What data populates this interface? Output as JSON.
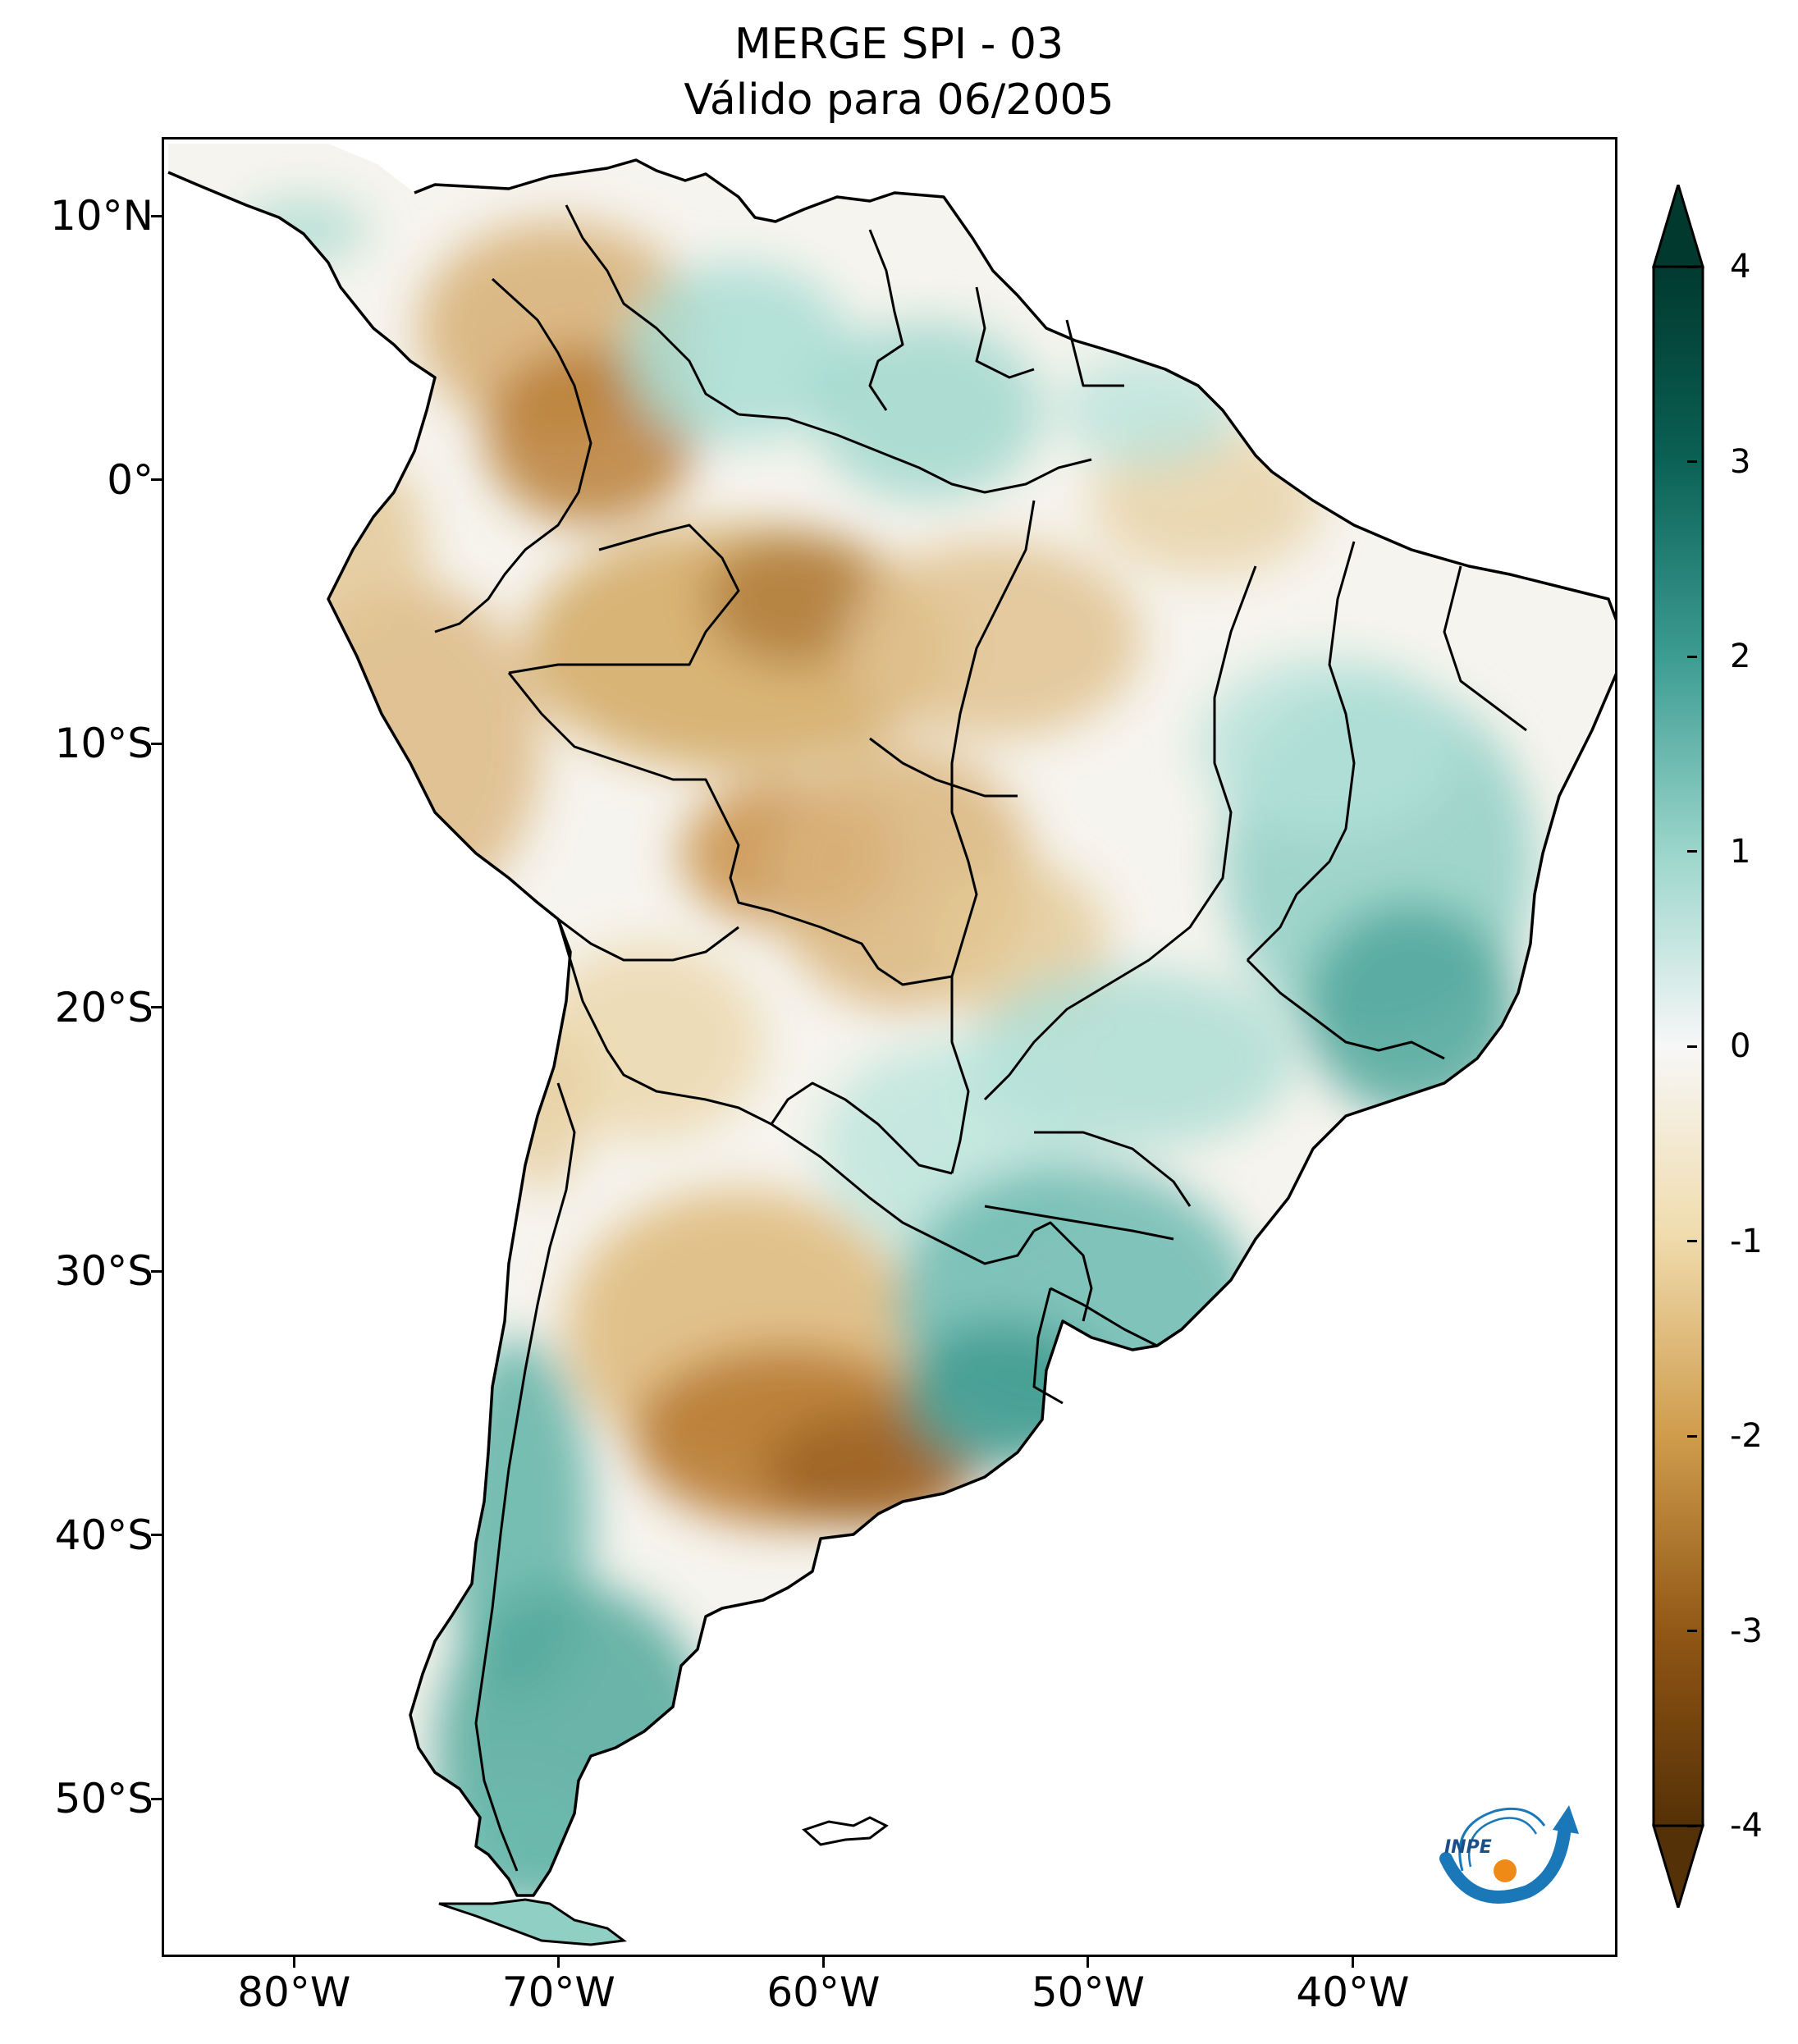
{
  "title": {
    "line1": "MERGE   SPI - 03",
    "line2": "Válido para 06/2005"
  },
  "axes": {
    "lat_labels": [
      "10°N",
      "0°",
      "10°S",
      "20°S",
      "30°S",
      "40°S",
      "50°S"
    ],
    "lon_labels": [
      "80°W",
      "70°W",
      "60°W",
      "50°W",
      "40°W"
    ],
    "lat_values": [
      10,
      0,
      -10,
      -20,
      -30,
      -40,
      -50
    ],
    "lon_values": [
      -80,
      -70,
      -60,
      -50,
      -40
    ],
    "lat_range": [
      -56,
      13
    ],
    "lon_range": [
      -85,
      -30
    ]
  },
  "colorbar": {
    "ticks": [
      "4",
      "3",
      "2",
      "1",
      "0",
      "-1",
      "-2",
      "-3",
      "-4"
    ],
    "tick_values": [
      4,
      3,
      2,
      1,
      0,
      -1,
      -2,
      -3,
      -4
    ],
    "range": [
      -4,
      4
    ],
    "colormap": "BrBG",
    "colors": {
      "max": "#01392f",
      "wet_strong": "#0e7367",
      "wet": "#5cb3a8",
      "wet_light": "#c5e9e3",
      "neutral": "#f5f5f5",
      "dry_light": "#f3e3bd",
      "dry": "#d6a656",
      "dry_strong": "#a2651c",
      "min": "#553107"
    }
  },
  "logo": {
    "text": "INPE"
  },
  "map_regions": [
    {
      "name": "colombia-venezuela-dry",
      "spi": -0.8
    },
    {
      "name": "amazon-dry",
      "spi": -1.2
    },
    {
      "name": "central-brazil-dry",
      "spi": -0.9
    },
    {
      "name": "pampas-dry",
      "spi": -2.0
    },
    {
      "name": "east-brazil-wet",
      "spi": 1.2
    },
    {
      "name": "south-brazil-uruguay-wet",
      "spi": 1.8
    },
    {
      "name": "patagonia-chile-wet",
      "spi": 1.6
    },
    {
      "name": "guianas-wet",
      "spi": 0.9
    }
  ]
}
